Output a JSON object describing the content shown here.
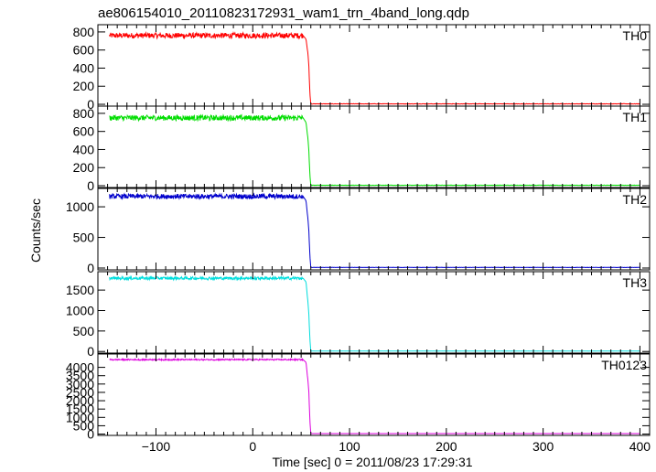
{
  "figure": {
    "title": "ae806154010_20110823172931_wam1_trn_4band_long.qdp",
    "xlabel": "Time [sec] 0 = 2011/08/23 17:29:31",
    "ylabel": "Counts/sec"
  },
  "chart_data": [
    {
      "type": "line",
      "panel": "TH0",
      "color": "#ff0000",
      "xlim": [
        -160,
        410
      ],
      "ylim": [
        -20,
        880
      ],
      "yticks": [
        0,
        200,
        400,
        600,
        800
      ],
      "series": [
        {
          "name": "TH0",
          "x": [
            -148,
            52,
            55,
            57,
            58,
            59,
            60,
            400
          ],
          "y": [
            760,
            760,
            720,
            560,
            420,
            120,
            5,
            5
          ],
          "noise": 60
        }
      ]
    },
    {
      "type": "line",
      "panel": "TH1",
      "color": "#00dd00",
      "xlim": [
        -160,
        410
      ],
      "ylim": [
        -20,
        880
      ],
      "yticks": [
        0,
        200,
        400,
        600,
        800
      ],
      "series": [
        {
          "name": "TH1",
          "x": [
            -148,
            52,
            55,
            57,
            58,
            59,
            60,
            400
          ],
          "y": [
            750,
            750,
            700,
            520,
            380,
            120,
            5,
            5
          ],
          "noise": 60
        }
      ]
    },
    {
      "type": "line",
      "panel": "TH2",
      "color": "#0000cc",
      "xlim": [
        -160,
        410
      ],
      "ylim": [
        -30,
        1300
      ],
      "yticks": [
        0,
        500,
        1000
      ],
      "series": [
        {
          "name": "TH2",
          "x": [
            -148,
            52,
            55,
            57,
            58,
            59,
            60,
            400
          ],
          "y": [
            1170,
            1170,
            1100,
            800,
            600,
            200,
            10,
            10
          ],
          "noise": 80
        }
      ]
    },
    {
      "type": "line",
      "panel": "TH3",
      "color": "#00dddd",
      "xlim": [
        -160,
        410
      ],
      "ylim": [
        -40,
        1950
      ],
      "yticks": [
        0,
        500,
        1000,
        1500
      ],
      "series": [
        {
          "name": "TH3",
          "x": [
            -148,
            52,
            55,
            57,
            58,
            59,
            60,
            400
          ],
          "y": [
            1790,
            1790,
            1700,
            1200,
            900,
            300,
            10,
            10
          ],
          "noise": 70
        }
      ]
    },
    {
      "type": "line",
      "panel": "TH0123",
      "color": "#dd00dd",
      "xlim": [
        -160,
        410
      ],
      "ylim": [
        -80,
        4800
      ],
      "yticks": [
        0,
        500,
        1000,
        1500,
        2000,
        2500,
        3000,
        3500,
        4000
      ],
      "series": [
        {
          "name": "TH0123",
          "x": [
            -148,
            52,
            55,
            57,
            58,
            59,
            60,
            400
          ],
          "y": [
            4460,
            4460,
            4300,
            3200,
            2500,
            800,
            30,
            30
          ],
          "noise": 80
        }
      ]
    }
  ],
  "xticks": [
    -100,
    0,
    100,
    200,
    300,
    400
  ]
}
